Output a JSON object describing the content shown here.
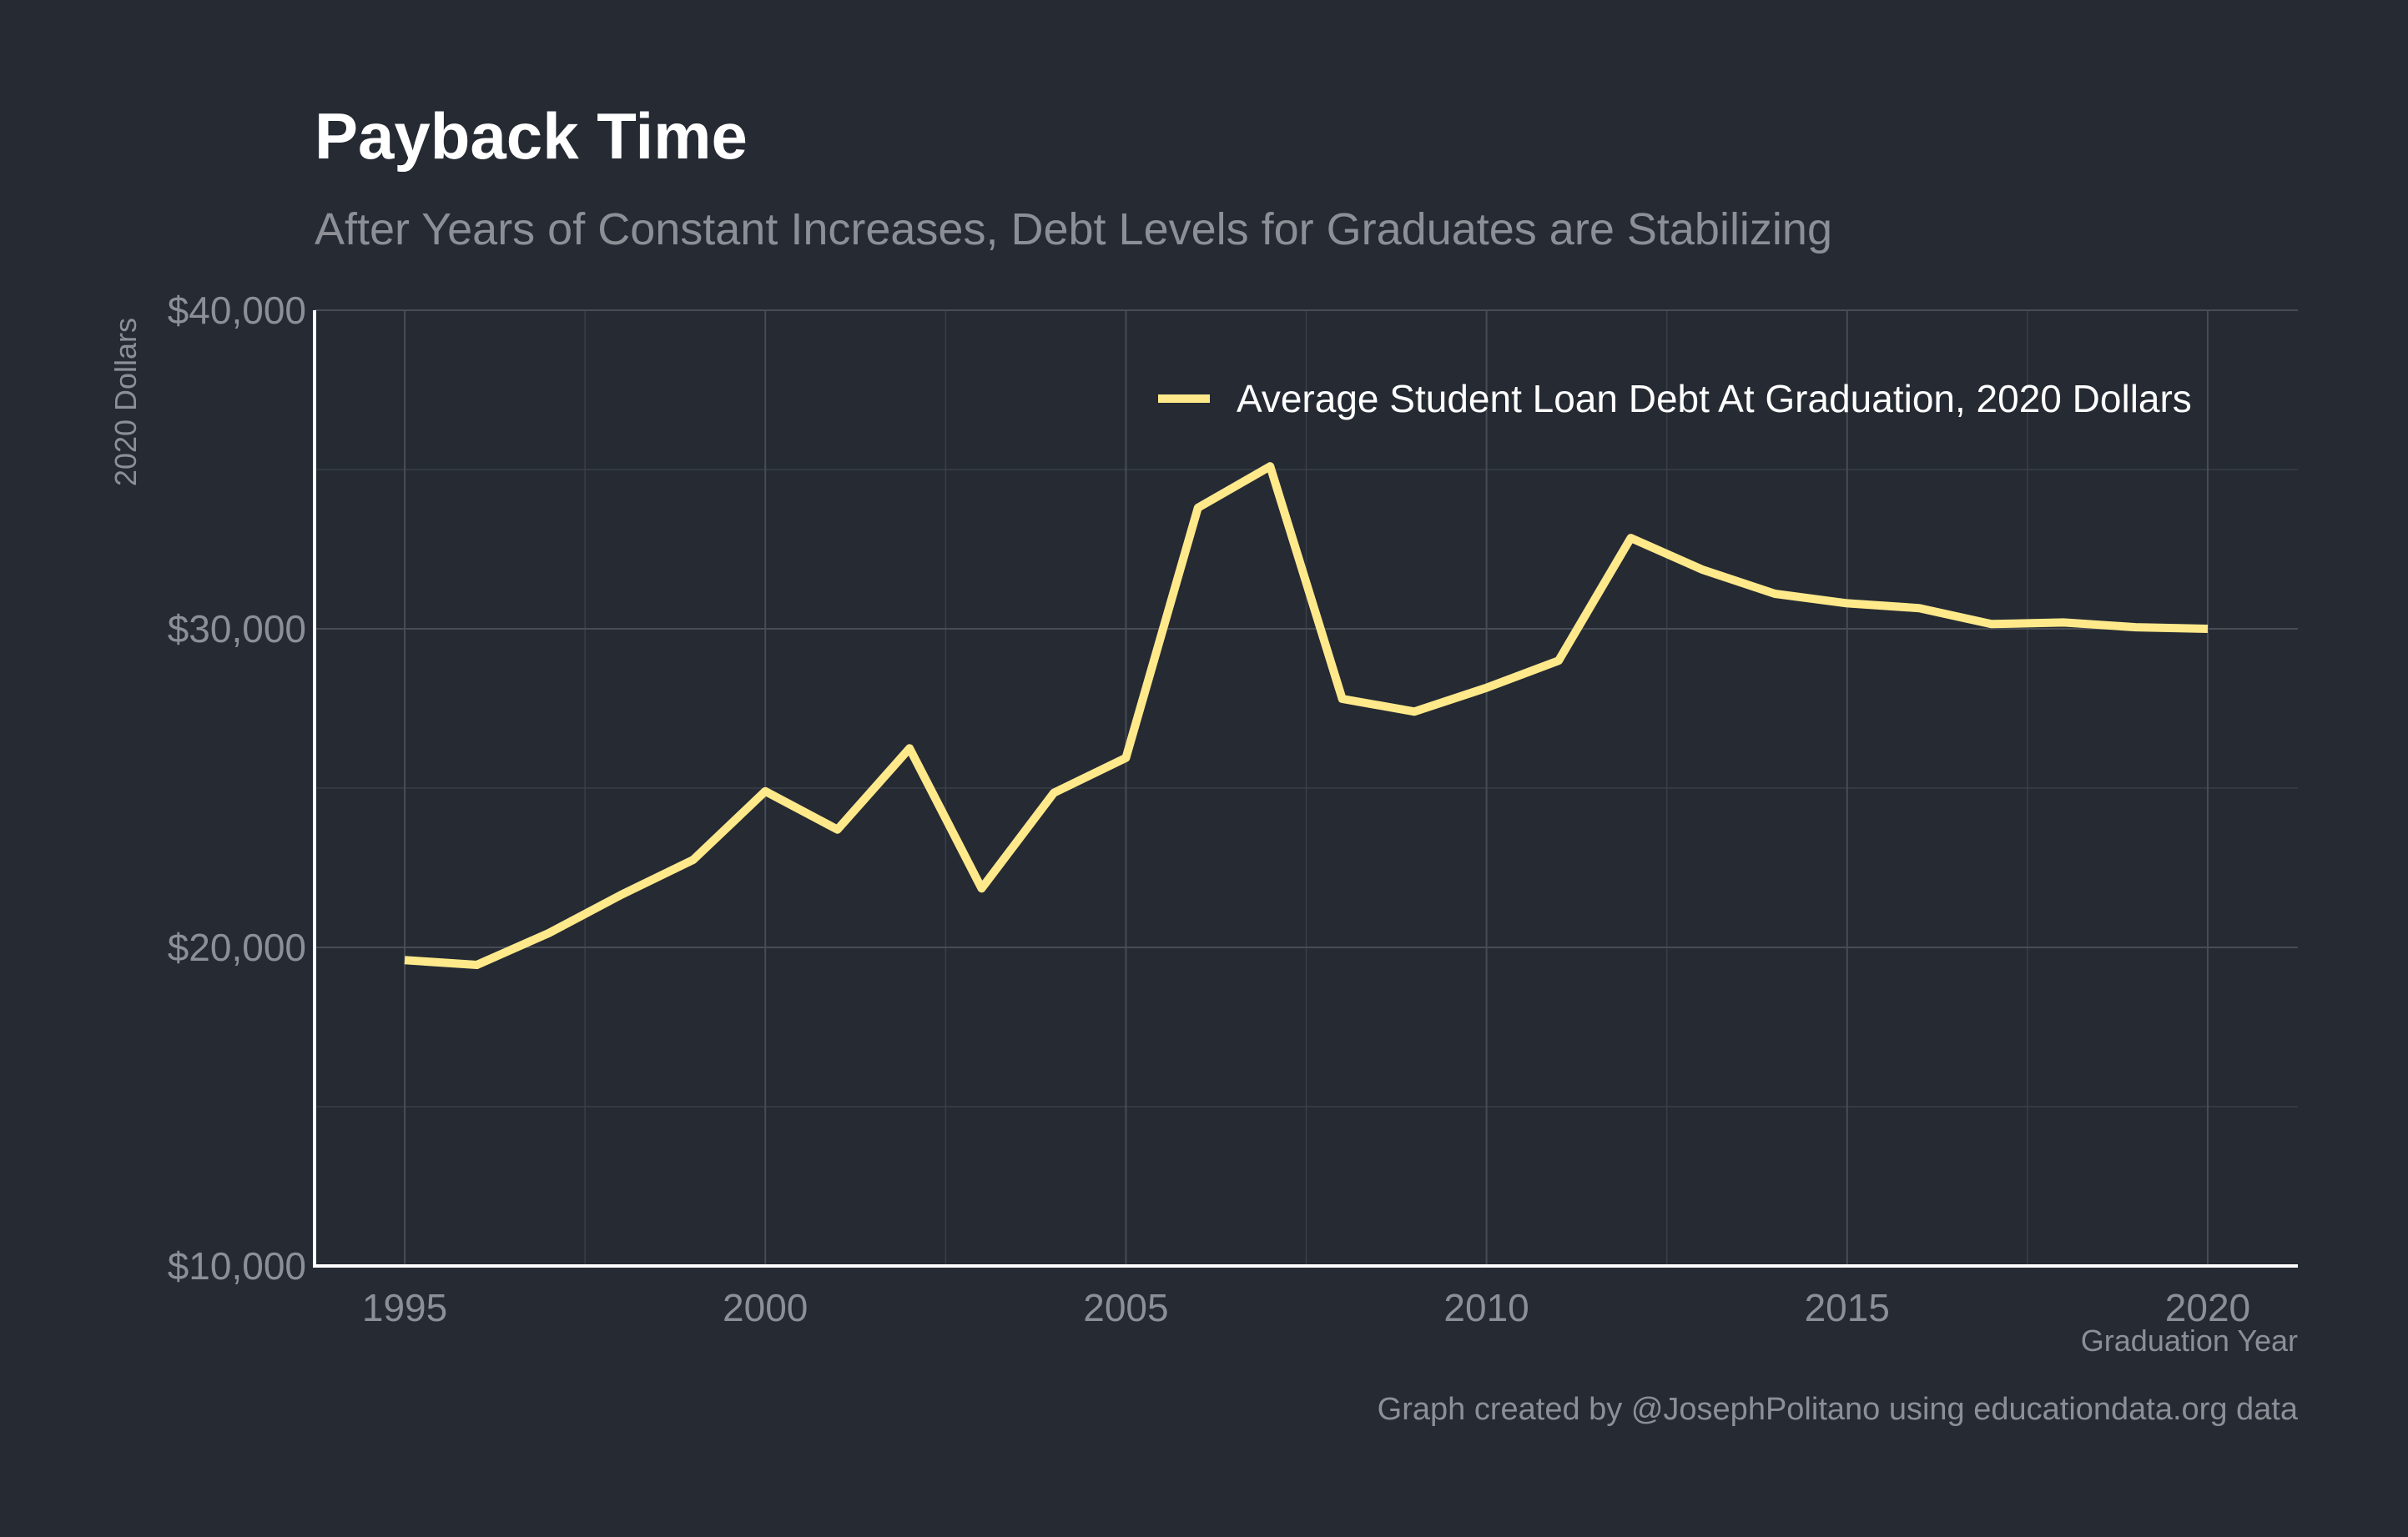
{
  "chart_data": {
    "type": "line",
    "title": "Payback Time",
    "subtitle": "After Years of Constant Increases, Debt Levels for Graduates are Stabilizing",
    "xlabel": "Graduation Year",
    "ylabel": "2020 Dollars",
    "caption": "Graph created by @JosephPolitano using educationdata.org data",
    "xlim": [
      1993.75,
      2021.25
    ],
    "ylim": [
      10000,
      40000
    ],
    "x_ticks": [
      1995,
      2000,
      2005,
      2010,
      2015,
      2020
    ],
    "x_tick_labels": [
      "1995",
      "2000",
      "2005",
      "2010",
      "2015",
      "2020"
    ],
    "y_ticks": [
      10000,
      20000,
      30000,
      40000
    ],
    "y_tick_labels": [
      "$10,000",
      "$20,000",
      "$30,000",
      "$40,000"
    ],
    "grid": true,
    "legend_position": "top-right",
    "series": [
      {
        "name": "Average Student Loan Debt At Graduation, 2020 Dollars",
        "color": "#ffe98a",
        "x": [
          1995,
          1996,
          1997,
          1998,
          1999,
          2000,
          2001,
          2002,
          2003,
          2004,
          2005,
          2006,
          2007,
          2008,
          2009,
          2010,
          2011,
          2012,
          2013,
          2014,
          2015,
          2016,
          2017,
          2018,
          2019,
          2020
        ],
        "values": [
          19600,
          19450,
          20450,
          21650,
          22750,
          24900,
          23700,
          26250,
          21850,
          24850,
          25950,
          33800,
          35100,
          27800,
          27400,
          28150,
          29000,
          32850,
          31850,
          31100,
          30800,
          30650,
          30150,
          30200,
          30050,
          30000
        ]
      }
    ]
  }
}
